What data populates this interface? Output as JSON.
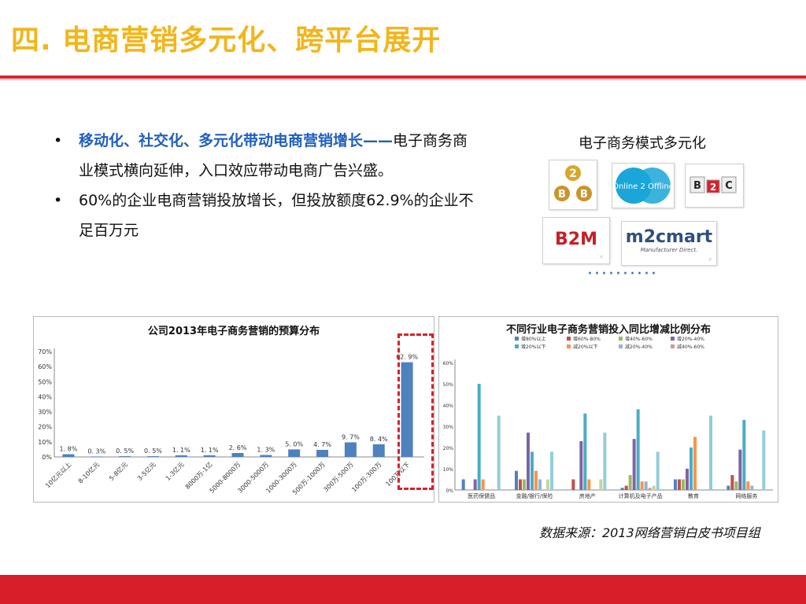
{
  "title": "四.  电商营销多元化、跨平台展开",
  "bullets": [
    {
      "highlight": "移动化、社交化、多元化带动电商营销增长——",
      "text": "电子商务商业模式横向延伸，入口效应带动电商广告兴盛。"
    },
    {
      "highlight": "",
      "text": "60%的企业电商营销投放增长，但投放额度62.9%的企业不足百万元"
    }
  ],
  "modes": {
    "title": "电子商务模式多元化",
    "logos": [
      "B2B",
      "Online 2 Offline",
      "B2C",
      "B2M",
      "m2cmart",
      "Manufacturer Direct."
    ],
    "dots": "··········"
  },
  "source": "数据来源：2013网络营销白皮书项目组",
  "colors": {
    "accent_yellow": "#f2b51b",
    "accent_red": "#d6252c",
    "bar_blue": "#4f81bd",
    "highlight_blue": "#1f5fbf"
  },
  "chart_data": [
    {
      "type": "bar",
      "title": "公司2013年电子商务营销的预算分布",
      "categories": [
        "10亿元以上",
        "8-10亿元",
        "5-8亿元",
        "3-5亿元",
        "1-3亿元",
        "8000万-1亿",
        "5000-8000万",
        "3000-5000万",
        "1000-3000万",
        "500万-1000万",
        "300万-500万",
        "100万-300万",
        "100万以下"
      ],
      "values": [
        1.8,
        0.3,
        0.5,
        0.5,
        1.1,
        1.1,
        2.6,
        1.3,
        5.0,
        4.7,
        9.7,
        8.4,
        62.9
      ],
      "value_labels": [
        "1. 8%",
        "0. 3%",
        "0. 5%",
        "0. 5%",
        "1. 1%",
        "1. 1%",
        "2. 6%",
        "1. 3%",
        "5. 0%",
        "4. 7%",
        "9. 7%",
        "8. 4%",
        "62. 9%"
      ],
      "yticks": [
        "0%",
        "10%",
        "20%",
        "30%",
        "40%",
        "50%",
        "60%",
        "70%"
      ],
      "ylim": [
        0,
        70
      ],
      "highlighted_category": "100万以下"
    },
    {
      "type": "bar",
      "title": "不同行业电子商务营销投入同比增减比例分布",
      "categories": [
        "医药保健品",
        "金融/银行/保险",
        "房地产",
        "计算机及电子产品",
        "教育",
        "网络服务"
      ],
      "yticks": [
        "0%",
        "10%",
        "20%",
        "30%",
        "40%",
        "50%",
        "60%"
      ],
      "ylim": [
        0,
        60
      ],
      "legend": [
        "增80%以上",
        "增60%-80%",
        "增40%-60%",
        "增20%-40%",
        "增20%以下",
        "减20%以下",
        "减20%-40%",
        "减40%-60%"
      ],
      "series": [
        {
          "name": "增80%以上",
          "color": "#4f81bd",
          "values": [
            5,
            9,
            0,
            1,
            5,
            2
          ]
        },
        {
          "name": "增60%-80%",
          "color": "#c0504d",
          "values": [
            0,
            5,
            5,
            2,
            5,
            7
          ]
        },
        {
          "name": "增40%-60%",
          "color": "#9bbb59",
          "values": [
            0,
            5,
            0,
            7,
            5,
            4
          ]
        },
        {
          "name": "增20%-40%",
          "color": "#8064a2",
          "values": [
            5,
            27,
            23,
            24,
            10,
            19
          ]
        },
        {
          "name": "增20%以下",
          "color": "#4bacc6",
          "values": [
            50,
            18,
            36,
            38,
            20,
            33
          ]
        },
        {
          "name": "减20%以下",
          "color": "#f79646",
          "values": [
            5,
            9,
            5,
            4,
            25,
            4
          ]
        },
        {
          "name": "减20%-40%",
          "color": "#95b3d7",
          "values": [
            0,
            5,
            0,
            4,
            0,
            2
          ]
        },
        {
          "name": "减40%-60%",
          "color": "#d99694",
          "values": [
            0,
            0,
            0,
            1,
            0,
            0
          ]
        },
        {
          "name": "",
          "color": "#c3d69b",
          "values": [
            0,
            5,
            5,
            2,
            0,
            0
          ]
        },
        {
          "name": "",
          "color": "#92cddc",
          "values": [
            35,
            18,
            27,
            18,
            35,
            28
          ]
        }
      ]
    }
  ]
}
